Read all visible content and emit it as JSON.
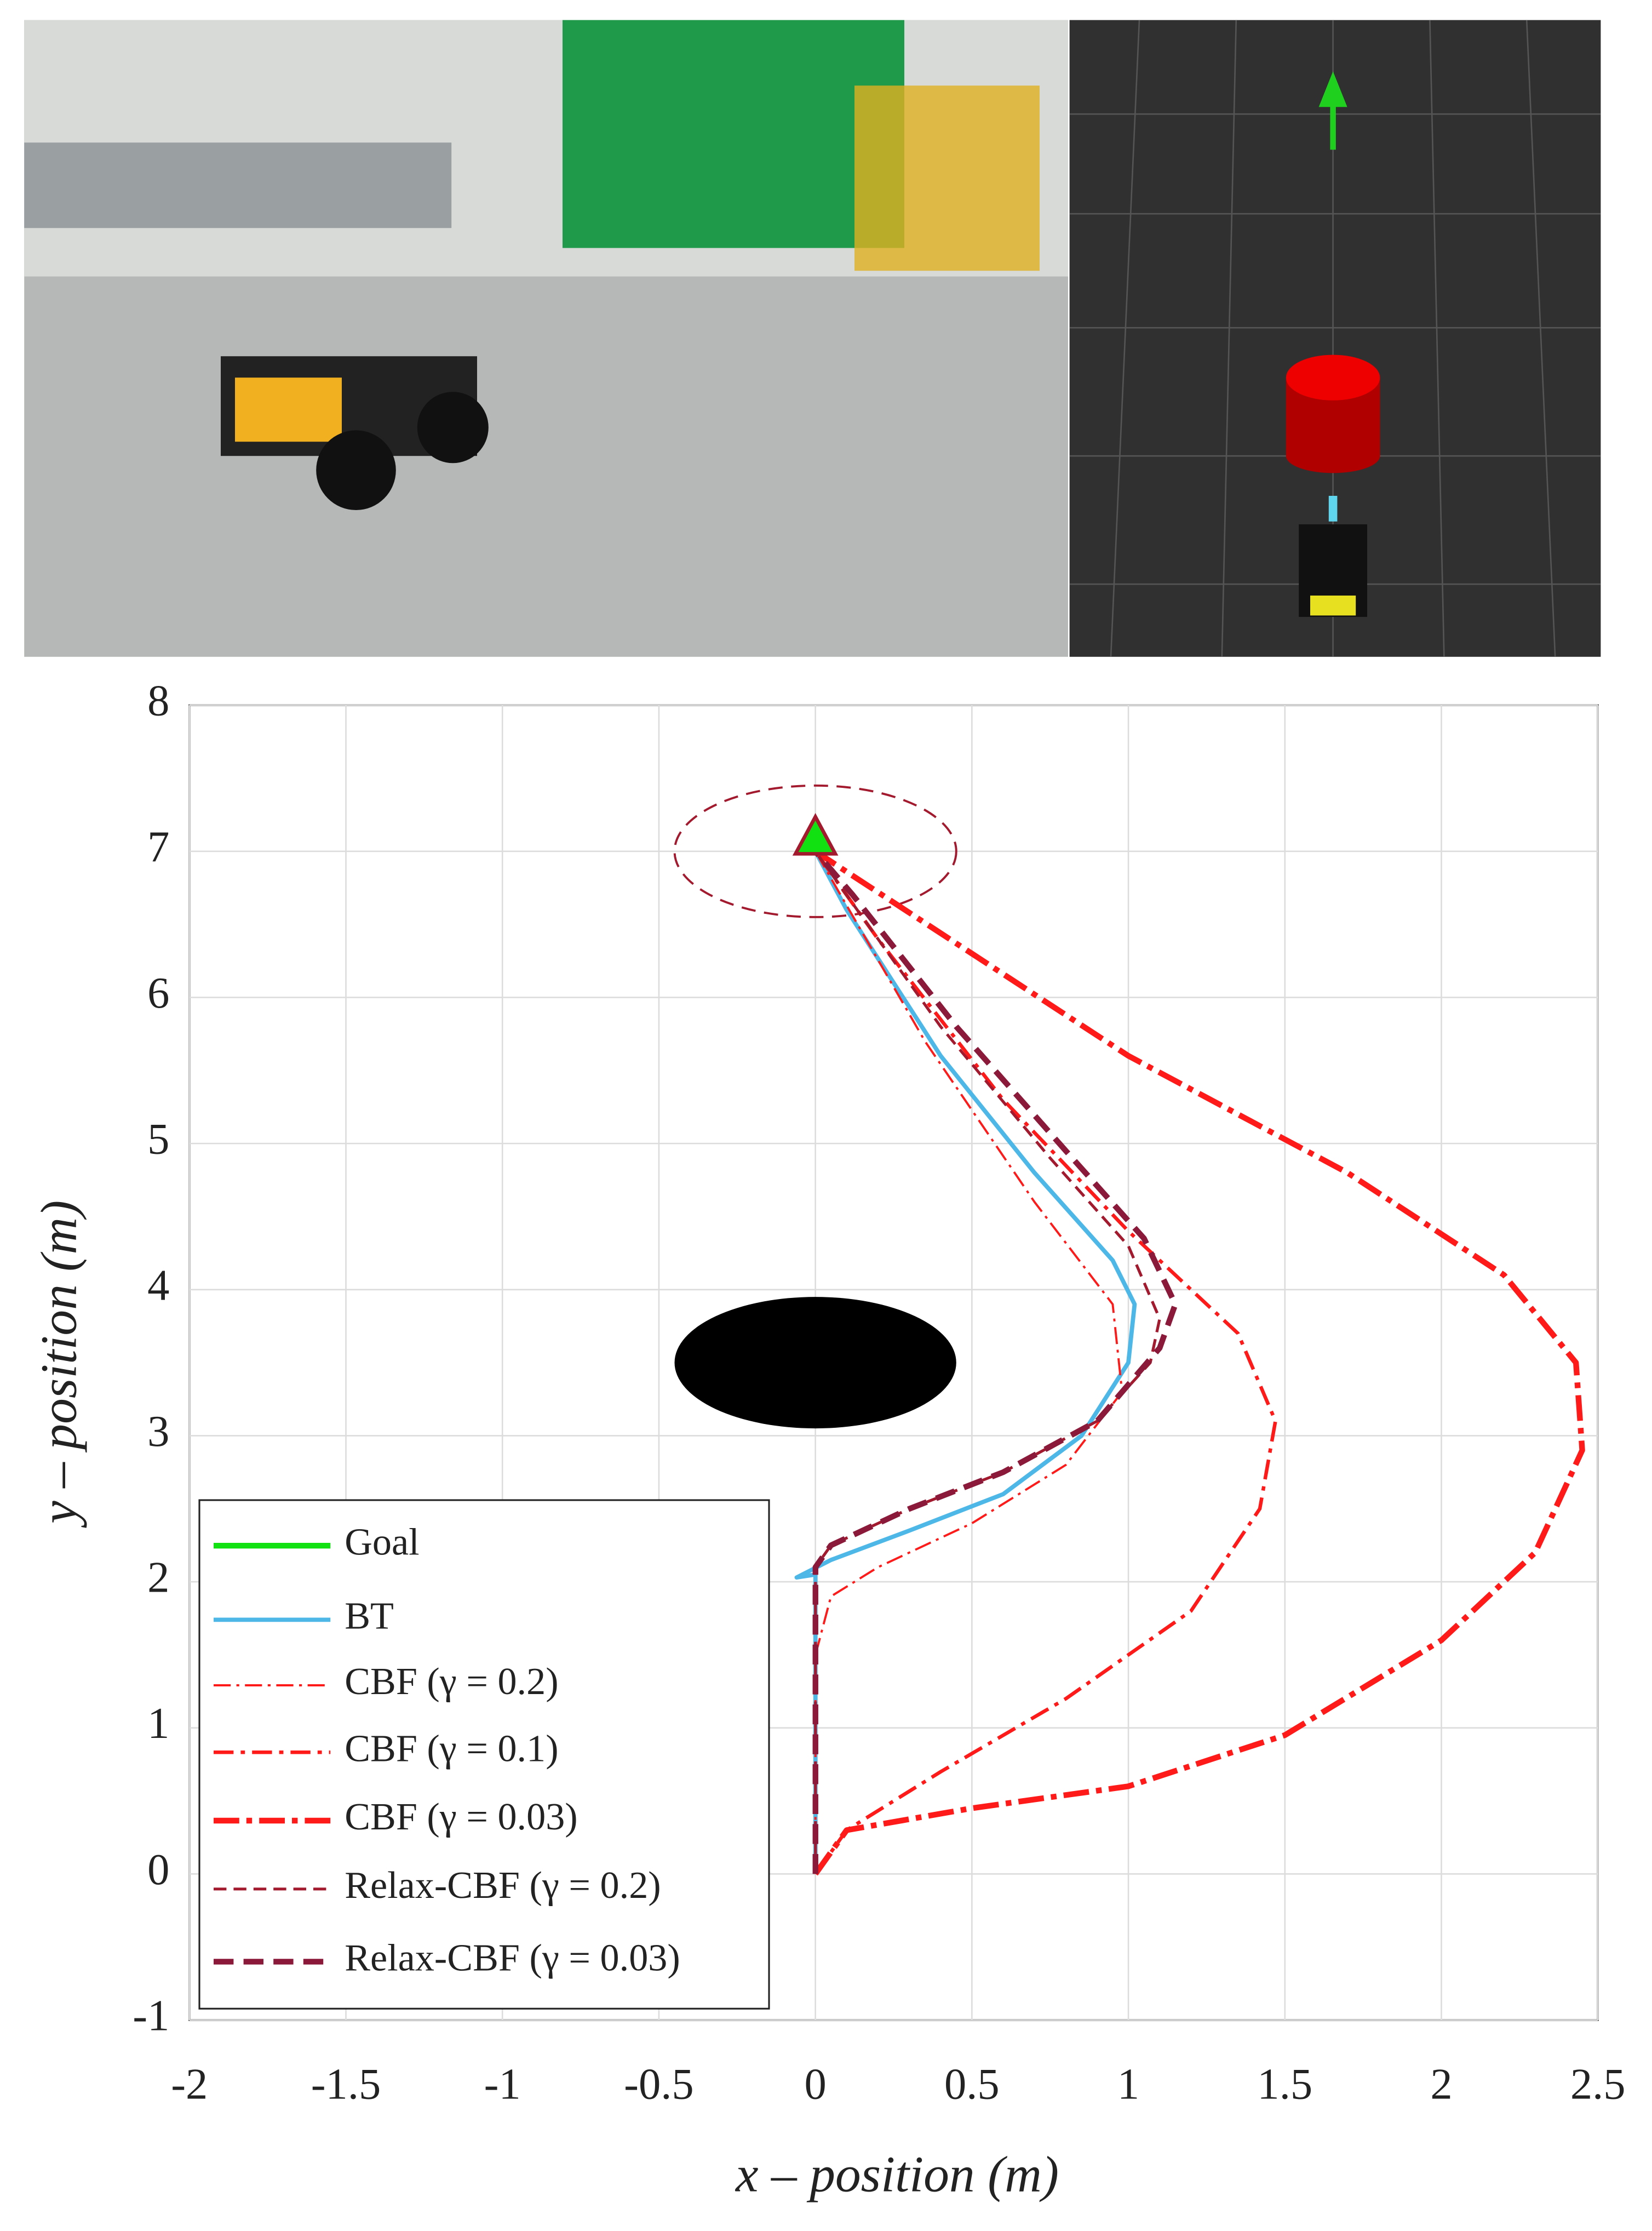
{
  "chart_data": {
    "type": "line",
    "x_label": "x – position (m)",
    "y_label": "y – position (m)",
    "xlim": [
      -2,
      2.5
    ],
    "xticks": [
      -2,
      -1.5,
      -1,
      -0.5,
      0,
      0.5,
      1,
      1.5,
      2,
      2.5
    ],
    "ylim": [
      -1,
      8
    ],
    "yticks": [
      -1,
      0,
      1,
      2,
      3,
      4,
      5,
      6,
      7,
      8
    ],
    "grid": true,
    "legend": "lower-left",
    "obstacle": {
      "center": [
        0,
        3.5
      ],
      "radius": 0.45,
      "color": "#000000"
    },
    "goal_region": {
      "center": [
        0,
        7
      ],
      "radius": 0.45,
      "color": "#a3192e"
    },
    "series": [
      {
        "name": "Goal",
        "color": "#11e011",
        "style": "marker",
        "x": [
          0
        ],
        "values": [
          7.1
        ]
      },
      {
        "name": "BT",
        "color": "#4db8e8",
        "style": "solid",
        "x": [
          0,
          0,
          0,
          -0.06,
          0.05,
          0.3,
          0.6,
          0.85,
          1.0,
          1.02,
          0.95,
          0.7,
          0.4,
          0.1,
          0
        ],
        "values": [
          0,
          1,
          2.05,
          2.03,
          2.15,
          2.35,
          2.6,
          3.0,
          3.5,
          3.9,
          4.2,
          4.8,
          5.6,
          6.6,
          7
        ]
      },
      {
        "name": "CBF (γ = 0.2)",
        "color": "#ff1a1a",
        "style": "dashdot-thin",
        "x": [
          0,
          0,
          0.05,
          0.2,
          0.5,
          0.8,
          0.98,
          0.95,
          0.7,
          0.35,
          0
        ],
        "values": [
          0,
          1.5,
          1.9,
          2.1,
          2.4,
          2.8,
          3.3,
          3.9,
          4.6,
          5.7,
          7
        ]
      },
      {
        "name": "CBF (γ = 0.1)",
        "color": "#ff1a1a",
        "style": "dashdot",
        "x": [
          0,
          0.1,
          0.4,
          0.8,
          1.2,
          1.42,
          1.47,
          1.35,
          1.0,
          0.6,
          0.2,
          0
        ],
        "values": [
          0,
          0.3,
          0.7,
          1.2,
          1.8,
          2.5,
          3.1,
          3.7,
          4.4,
          5.3,
          6.4,
          7
        ]
      },
      {
        "name": "CBF (γ = 0.03)",
        "color": "#ff1a1a",
        "style": "dashdot-thick",
        "x": [
          0,
          0.1,
          0.5,
          1.0,
          1.5,
          2.0,
          2.3,
          2.45,
          2.43,
          2.2,
          1.7,
          1.0,
          0.5,
          0
        ],
        "values": [
          0,
          0.3,
          0.45,
          0.6,
          0.95,
          1.6,
          2.2,
          2.9,
          3.5,
          4.1,
          4.8,
          5.6,
          6.3,
          7
        ]
      },
      {
        "name": "Relax-CBF (γ = 0.2)",
        "color": "#a3192e",
        "style": "dashed-thin",
        "x": [
          0,
          0,
          0.05,
          0.3,
          0.6,
          0.9,
          1.07,
          1.1,
          1.0,
          0.75,
          0.4,
          0.1,
          0
        ],
        "values": [
          0,
          2.1,
          2.25,
          2.5,
          2.75,
          3.1,
          3.5,
          3.8,
          4.3,
          4.9,
          5.8,
          6.7,
          7
        ]
      },
      {
        "name": "Relax-CBF (γ = 0.03)",
        "color": "#8b1a3a",
        "style": "dashed",
        "x": [
          0,
          0,
          0.05,
          0.3,
          0.6,
          0.9,
          1.1,
          1.15,
          1.05,
          0.8,
          0.45,
          0.12,
          0
        ],
        "values": [
          0,
          2.1,
          2.25,
          2.5,
          2.75,
          3.1,
          3.6,
          3.9,
          4.35,
          4.95,
          5.8,
          6.7,
          7
        ]
      }
    ]
  }
}
